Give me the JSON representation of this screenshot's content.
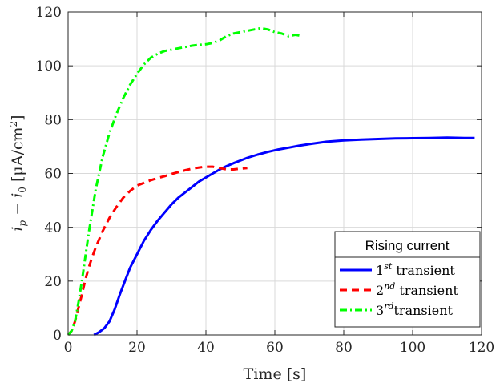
{
  "chart_data": {
    "type": "line",
    "xlabel": "Time [s]",
    "ylabel": "i_p − i_0 [μA/cm²]",
    "xlim": [
      0,
      120
    ],
    "ylim": [
      0,
      120
    ],
    "xticks": [
      0,
      20,
      40,
      60,
      80,
      100,
      120
    ],
    "yticks": [
      0,
      20,
      40,
      60,
      80,
      100,
      120
    ],
    "grid": true,
    "legend": {
      "title": "Rising current",
      "placement": "bottom-right"
    },
    "series": [
      {
        "name": "1st transient",
        "label_base": "1",
        "label_sup": "st",
        "label_rest": " transient",
        "color": "#0000ff",
        "dash": "solid",
        "x": [
          7.5,
          9,
          10.5,
          12,
          13.5,
          15,
          16.5,
          18,
          20,
          22,
          24,
          26,
          28,
          30,
          32,
          34,
          36,
          38,
          40,
          42,
          44,
          46,
          48,
          50,
          52,
          55,
          58,
          61,
          64,
          67,
          70,
          75,
          80,
          85,
          90,
          95,
          100,
          105,
          110,
          115,
          118
        ],
        "y": [
          0,
          1,
          2.5,
          5,
          9.5,
          15,
          20,
          25,
          30,
          35,
          39,
          42.5,
          45.5,
          48.5,
          51,
          53,
          55,
          57,
          58.5,
          60,
          61.5,
          62.7,
          63.8,
          64.8,
          65.8,
          67,
          68,
          68.9,
          69.6,
          70.3,
          70.9,
          71.8,
          72.3,
          72.6,
          72.8,
          73,
          73.1,
          73.2,
          73.3,
          73.2,
          73.2
        ]
      },
      {
        "name": "2nd transient",
        "label_base": "2",
        "label_sup": "nd",
        "label_rest": " transient",
        "color": "#ff0000",
        "dash": "dashed",
        "x": [
          0,
          1,
          2,
          3,
          4,
          5,
          6,
          7,
          8,
          9,
          10,
          12,
          14,
          16,
          18,
          20,
          22,
          24,
          26,
          28,
          30,
          32,
          34,
          36,
          38,
          40,
          42,
          44,
          46,
          48,
          50,
          52
        ],
        "y": [
          0,
          1.5,
          5,
          10,
          15,
          20.5,
          25,
          29,
          32.5,
          35.5,
          38.5,
          43.5,
          47.5,
          51,
          53.5,
          55.5,
          56.5,
          57.5,
          58.3,
          59,
          59.8,
          60.5,
          61.2,
          61.8,
          62.2,
          62.5,
          62.5,
          62,
          61.5,
          61.5,
          61.8,
          62
        ]
      },
      {
        "name": "3rd transient",
        "label_base": "3",
        "label_sup": "rd",
        "label_rest": "transient",
        "color": "#00ff00",
        "dash": "dashdot",
        "x": [
          0,
          1,
          2,
          3,
          4,
          5,
          6,
          7,
          8,
          9,
          10,
          12,
          14,
          16,
          18,
          20,
          22,
          24,
          26,
          28,
          30,
          32,
          34,
          36,
          38,
          40,
          42,
          44,
          46,
          48,
          50,
          52,
          54,
          56,
          58,
          60,
          62,
          64,
          66,
          68
        ],
        "y": [
          0,
          1.5,
          5,
          12,
          20,
          29,
          38,
          46,
          54,
          60,
          66,
          75,
          82,
          88,
          93,
          97,
          100.5,
          103,
          104.5,
          105.5,
          106,
          106.5,
          107,
          107.5,
          107.8,
          108,
          108.5,
          109.5,
          111,
          112,
          112.5,
          113,
          113.5,
          114,
          113.5,
          112.5,
          112,
          111,
          111.5,
          111
        ]
      }
    ]
  }
}
